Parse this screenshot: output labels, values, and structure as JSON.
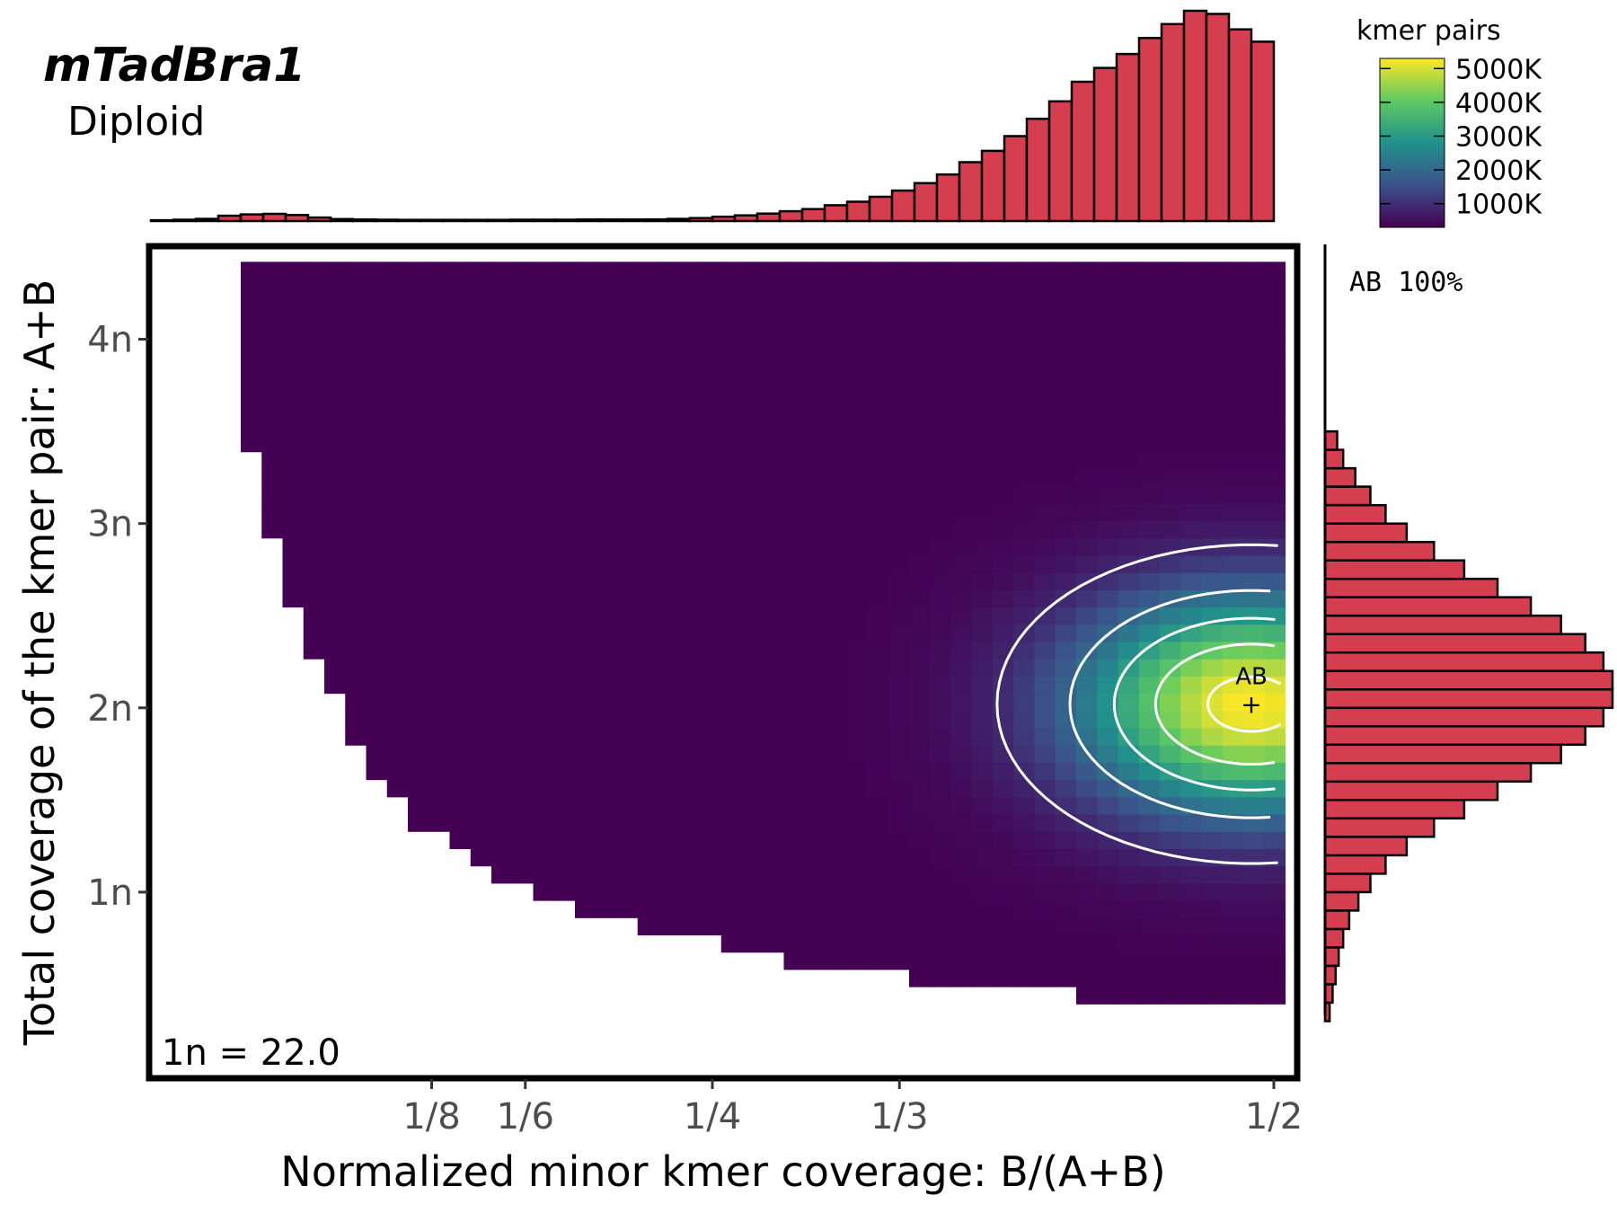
{
  "header": {
    "title": "mTadBra1",
    "subtitle": "Diploid"
  },
  "legend": {
    "title": "kmer pairs",
    "ticks": [
      "5000K",
      "4000K",
      "3000K",
      "2000K",
      "1000K"
    ],
    "tick_values": [
      5000,
      4000,
      3000,
      2000,
      1000
    ],
    "max": 5300,
    "min": 300,
    "placement": "top-right",
    "colors": [
      "#440154",
      "#3b528b",
      "#21918c",
      "#5ec962",
      "#fde725"
    ]
  },
  "chart_data": {
    "type": "heatmap",
    "title": "mTadBra1",
    "subtitle": "Diploid",
    "xlabel": "Normalized minor kmer coverage: B/(A+B)",
    "ylabel": "Total coverage of the kmer pair: A+B",
    "x_ticks": [
      {
        "label": "1/8",
        "value": 0.125
      },
      {
        "label": "1/6",
        "value": 0.1667
      },
      {
        "label": "1/4",
        "value": 0.25
      },
      {
        "label": "1/3",
        "value": 0.3333
      },
      {
        "label": "1/2",
        "value": 0.5
      }
    ],
    "y_ticks": [
      {
        "label": "1n",
        "value": 1
      },
      {
        "label": "2n",
        "value": 2
      },
      {
        "label": "3n",
        "value": 3
      },
      {
        "label": "4n",
        "value": 4
      }
    ],
    "xlim": [
      0,
      0.51
    ],
    "ylim": [
      0,
      4.5
    ],
    "grid": false,
    "annotation": "1n = 22.0",
    "peak": {
      "label": "AB",
      "x": 0.49,
      "y": 2.02
    },
    "smudge": {
      "label": "AB 100%"
    },
    "lower_boundary_x": [
      0.04,
      0.05,
      0.06,
      0.07,
      0.08,
      0.09,
      0.1,
      0.11,
      0.12,
      0.13,
      0.14,
      0.15,
      0.16,
      0.17,
      0.18,
      0.2,
      0.22,
      0.25,
      0.28,
      0.33,
      0.4,
      0.5
    ],
    "lower_boundary_y": [
      3.7,
      3.1,
      2.6,
      2.3,
      2.1,
      1.85,
      1.65,
      1.5,
      1.35,
      1.27,
      1.2,
      1.13,
      1.06,
      1.0,
      0.95,
      0.88,
      0.8,
      0.72,
      0.62,
      0.55,
      0.45,
      0.35
    ],
    "density_model": {
      "peak_count_K": 5300,
      "background_K": 300,
      "center_x": 0.49,
      "center_y": 2.02,
      "sigma_x": 0.055,
      "sigma_y": 0.42
    },
    "contour_levels_K": [
      900,
      2000,
      3000,
      4000,
      5000
    ],
    "top_histogram": {
      "label": "kmer pairs vs B/(A+B)",
      "x_start": 0.005,
      "bin_width": 0.01,
      "values": [
        0.5,
        0.8,
        1.3,
        3.2,
        4.0,
        4.3,
        3.6,
        2.1,
        1.2,
        0.9,
        0.8,
        0.7,
        0.7,
        0.7,
        0.7,
        0.7,
        0.8,
        0.8,
        0.8,
        0.9,
        0.9,
        0.9,
        1.0,
        1.3,
        1.8,
        2.6,
        3.4,
        4.5,
        5.9,
        7.2,
        9.5,
        11.6,
        14.6,
        18.3,
        22.8,
        28.0,
        35.4,
        42.2,
        51.1,
        61.5,
        72.0,
        83.8,
        92.1,
        100.5,
        110.1,
        118.5,
        126.5,
        124.6,
        115.3,
        107.9
      ]
    },
    "right_histogram": {
      "label": "kmer pairs vs A+B",
      "y_start": 0.3,
      "bin_width": 0.1,
      "values": [
        1.5,
        2.5,
        3.5,
        4.5,
        6.0,
        8.0,
        11.0,
        15.0,
        20.0,
        27.0,
        36.0,
        46.0,
        57.0,
        68.0,
        78.0,
        86.0,
        92.0,
        95.0,
        95.0,
        92.0,
        86.0,
        78.0,
        68.0,
        57.0,
        46.0,
        36.0,
        27.0,
        20.0,
        15.0,
        10.0,
        6.0,
        4.0
      ]
    }
  }
}
